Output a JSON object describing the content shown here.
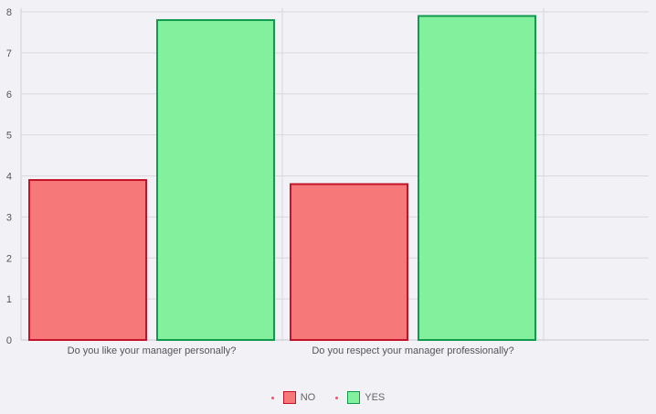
{
  "chart_data": {
    "type": "bar",
    "categories": [
      "Do you like your manager personally?",
      "Do you respect your manager professionally?"
    ],
    "series": [
      {
        "name": "NO",
        "values": [
          3.9,
          3.8
        ],
        "fill": "#f77878",
        "stroke": "#c3132a"
      },
      {
        "name": "YES",
        "values": [
          7.8,
          7.9
        ],
        "fill": "#82f09c",
        "stroke": "#119a4e"
      }
    ],
    "ylim": [
      0,
      8
    ],
    "yticks": [
      "0",
      "1",
      "2",
      "3",
      "4",
      "5",
      "6",
      "7",
      "8"
    ],
    "grid": true,
    "legend_position": "bottom-center"
  },
  "legend": {
    "dot_color": "#ff4a6a"
  }
}
